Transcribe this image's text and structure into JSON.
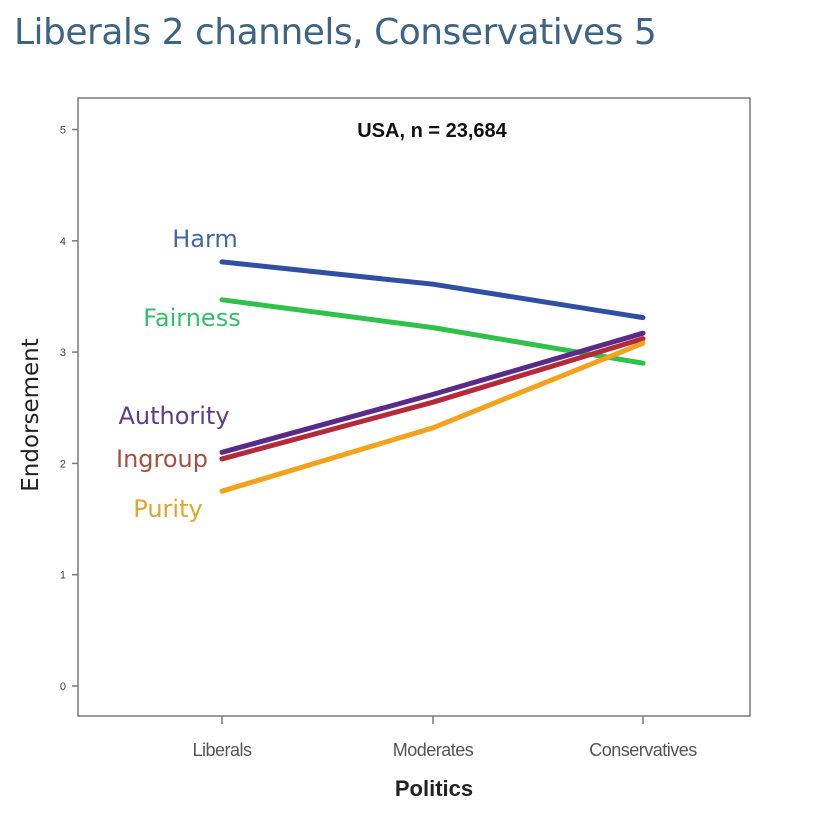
{
  "slide": {
    "title": "Liberals 2 channels, Conservatives 5"
  },
  "chart_data": {
    "type": "line",
    "title": "USA, n = 23,684",
    "xlabel": "Politics",
    "ylabel": "Endorsement",
    "categories": [
      "Liberals",
      "Moderates",
      "Conservatives"
    ],
    "ylim": [
      0,
      5
    ],
    "yticks": [
      "0",
      "1",
      "2",
      "3",
      "4",
      "5"
    ],
    "grid": false,
    "legend": "inline labels at left",
    "series": [
      {
        "name": "Harm",
        "color": "#2f4fa2",
        "values": [
          3.81,
          3.61,
          3.31
        ]
      },
      {
        "name": "Fairness",
        "color": "#2ec24a",
        "values": [
          3.47,
          3.22,
          2.9
        ]
      },
      {
        "name": "Authority",
        "color": "#5a2a8a",
        "values": [
          2.1,
          2.62,
          3.17
        ]
      },
      {
        "name": "Ingroup",
        "color": "#b52a3a",
        "values": [
          2.04,
          2.55,
          3.12
        ]
      },
      {
        "name": "Purity",
        "color": "#f2a21c",
        "values": [
          1.75,
          2.32,
          3.08
        ]
      }
    ]
  }
}
